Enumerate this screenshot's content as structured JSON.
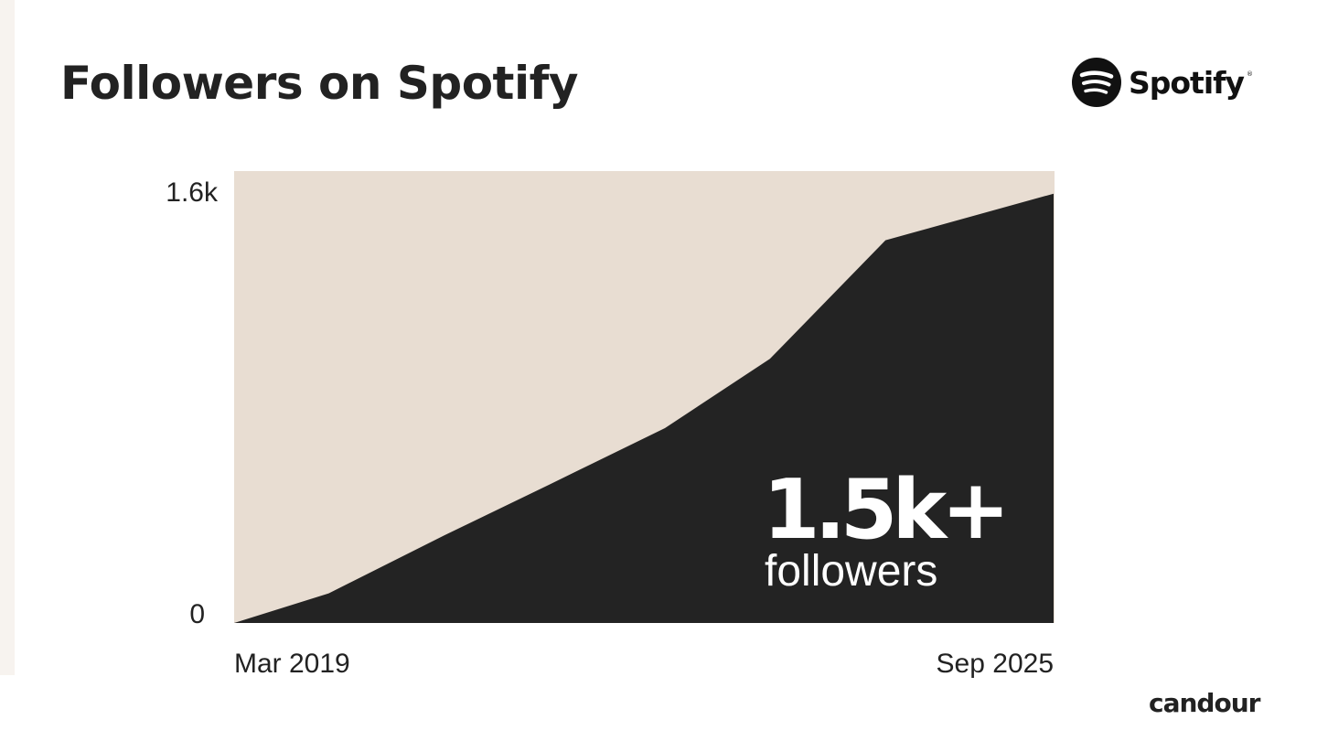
{
  "title": "Followers on Spotify",
  "brand": {
    "spotify_wordmark": "Spotify",
    "footer": "candour"
  },
  "colors": {
    "background": "#e8ddd2",
    "area": "#232323",
    "text": "#222222",
    "highlight_text": "#ffffff"
  },
  "chart_data": {
    "type": "area",
    "title": "Followers on Spotify",
    "xlabel": "",
    "ylabel": "",
    "x_tick_labels": [
      "Mar 2019",
      "Sep 2025"
    ],
    "y_tick_labels": [
      "0",
      "1.6k"
    ],
    "ylim": [
      0,
      1600
    ],
    "grid": false,
    "series": [
      {
        "x": [
          "2019-03",
          "2019-12",
          "2020-11",
          "2021-09",
          "2022-08",
          "2023-06",
          "2024-05",
          "2025-09"
        ],
        "values": [
          0,
          105,
          310,
          490,
          690,
          935,
          1355,
          1520
        ]
      }
    ],
    "annotation": {
      "value": "1.5k+",
      "label": "followers"
    }
  }
}
